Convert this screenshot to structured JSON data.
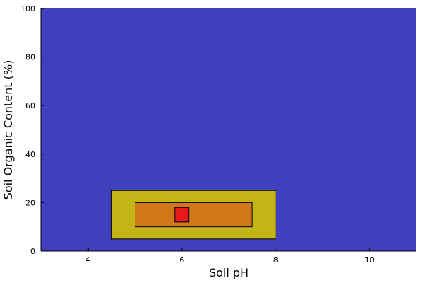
{
  "chart_data": {
    "type": "area",
    "title": "",
    "xlabel": "Soil pH",
    "ylabel": "Soil Organic Content (%)",
    "xlim": [
      3,
      11
    ],
    "ylim": [
      0,
      100
    ],
    "xticks": [
      4,
      6,
      8,
      10
    ],
    "yticks": [
      0,
      20,
      40,
      60,
      80,
      100
    ],
    "grid": false,
    "legend": "none",
    "background_color": "#4040bf",
    "regions": [
      {
        "x": [
          4.5,
          8.0
        ],
        "y": [
          5,
          25
        ],
        "color": "#c3b518"
      },
      {
        "x": [
          5.0,
          7.5
        ],
        "y": [
          10,
          20
        ],
        "color": "#cf7719"
      },
      {
        "x": [
          5.85,
          6.15
        ],
        "y": [
          12,
          18
        ],
        "color": "#e8191c"
      }
    ]
  }
}
